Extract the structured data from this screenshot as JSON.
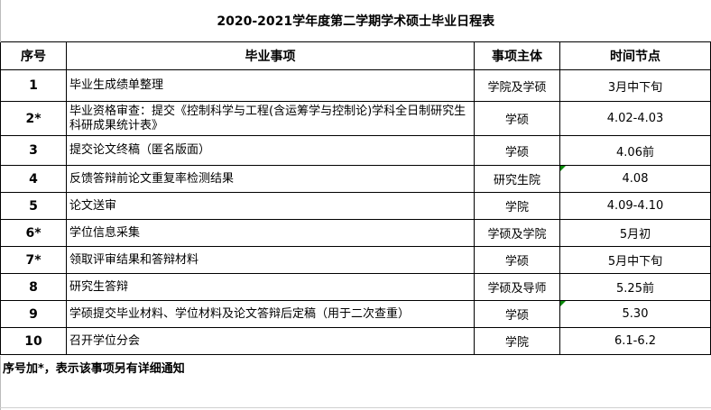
{
  "title": "2020-2021学年度第二学期学术硕士毕业日程表",
  "headers": {
    "no": "序号",
    "item": "毕业事项",
    "who": "事项主体",
    "time": "时间节点"
  },
  "rows": [
    {
      "no": "1",
      "item": "毕业生成绩单整理",
      "who": "学院及学硕",
      "time": "3月中下旬"
    },
    {
      "no": "2*",
      "item": "毕业资格审查：提交《控制科学与工程(含运筹学与控制论)学科全日制研究生科研成果统计表》",
      "who": "学硕",
      "time": "4.02-4.03"
    },
    {
      "no": "3",
      "item": "提交论文终稿（匿名版面）",
      "who": "学硕",
      "time": "4.06前"
    },
    {
      "no": "4",
      "item": "反馈答辩前论文重复率检测结果",
      "who": "研究生院",
      "time": "4.08"
    },
    {
      "no": "5",
      "item": "论文送审",
      "who": "学院",
      "time": "4.09-4.10"
    },
    {
      "no": "6*",
      "item": "学位信息采集",
      "who": "学硕及学院",
      "time": "5月初"
    },
    {
      "no": "7*",
      "item": "领取评审结果和答辩材料",
      "who": "学硕",
      "time": "5月中下旬"
    },
    {
      "no": "8",
      "item": "研究生答辩",
      "who": "学硕及导师",
      "time": "5.25前"
    },
    {
      "no": "9",
      "item": "学硕提交毕业材料、学位材料及论文答辩后定稿（用于二次查重）",
      "who": "学硕",
      "time": "5.30"
    },
    {
      "no": "10",
      "item": "召开学位分会",
      "who": "学院",
      "time": "6.1-6.2"
    }
  ],
  "note": "序号加*，表示该事项另有详细通知",
  "colors": {
    "comment_marker": "#0a8a0a"
  }
}
